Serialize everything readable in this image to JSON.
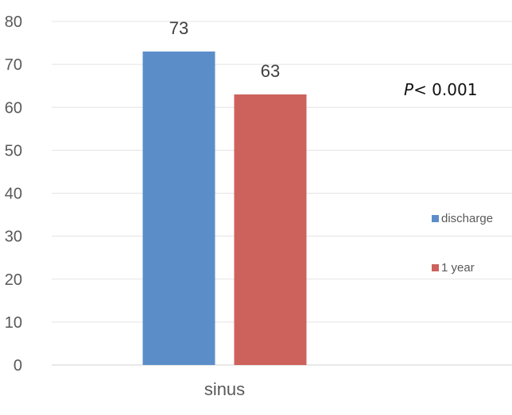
{
  "chart_data": {
    "type": "bar",
    "categories": [
      "sinus"
    ],
    "series": [
      {
        "name": "discharge",
        "values": [
          73
        ],
        "color": "#5b8ec9"
      },
      {
        "name": "1 year",
        "values": [
          63
        ],
        "color": "#cd625c"
      }
    ],
    "ylim": [
      0,
      80
    ],
    "yticks": [
      0,
      10,
      20,
      30,
      40,
      50,
      60,
      70,
      80
    ],
    "grid": true,
    "legend_placement": "right",
    "annotation": {
      "italic": "P",
      "text": "< 0.001"
    }
  }
}
